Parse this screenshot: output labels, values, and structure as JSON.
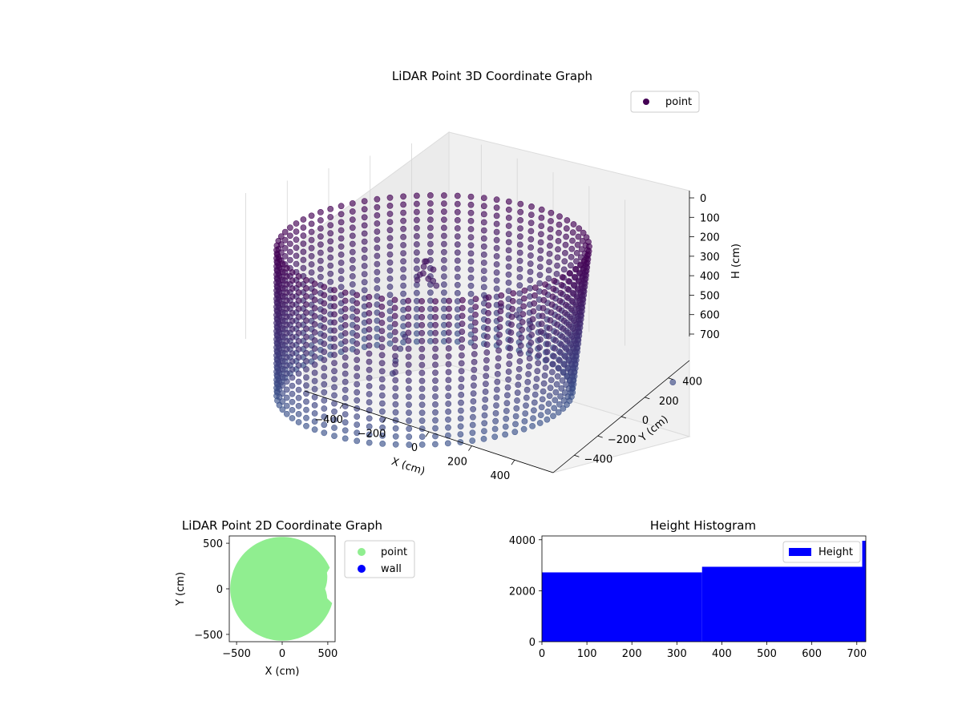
{
  "chart_data": [
    {
      "type": "scatter",
      "projection": "3d",
      "title": "LiDAR Point 3D Coordinate Graph",
      "xlabel": "X (cm)",
      "ylabel": "Y (cm)",
      "zlabel": "H (cm)",
      "xticks": [
        -400,
        -200,
        0,
        200,
        400
      ],
      "yticks": [
        -400,
        -200,
        0,
        200,
        400
      ],
      "zticks": [
        0,
        100,
        200,
        300,
        400,
        500,
        600,
        700
      ],
      "xlim": [
        -580,
        580
      ],
      "ylim": [
        -580,
        580
      ],
      "zlim": [
        0,
        720
      ],
      "z_inverted": true,
      "legend": {
        "entries": [
          "point"
        ],
        "loc": "upper right"
      },
      "series": [
        {
          "name": "point",
          "shape": "cylindrical wall of scan rings",
          "radius_cm": 570,
          "rings": 72,
          "height_levels": [
            0,
            40,
            80,
            120,
            160,
            200,
            240,
            280,
            320,
            360,
            400,
            440,
            480,
            520,
            560,
            600,
            640,
            680,
            720
          ],
          "color_start": "#440154",
          "color_end": "#3b528b",
          "extra_points": [
            [
              -120,
              60,
              150
            ],
            [
              -100,
              40,
              170
            ],
            [
              -90,
              80,
              160
            ],
            [
              -140,
              90,
              140
            ],
            [
              -60,
              30,
              180
            ],
            [
              -110,
              20,
              200
            ],
            [
              -80,
              70,
              210
            ],
            [
              -130,
              50,
              190
            ],
            [
              -160,
              100,
              150
            ],
            [
              -50,
              60,
              220
            ],
            [
              40,
              220,
              300
            ],
            [
              80,
              260,
              340
            ],
            [
              120,
              300,
              380
            ],
            [
              160,
              330,
              420
            ],
            [
              200,
              360,
              460
            ],
            [
              -40,
              -100,
              420
            ],
            [
              -20,
              -140,
              460
            ],
            [
              0,
              -180,
              500
            ],
            [
              30,
              -220,
              540
            ],
            [
              620,
              620,
              640
            ]
          ]
        }
      ],
      "grid": true
    },
    {
      "type": "scatter",
      "title": "LiDAR Point 2D Coordinate Graph",
      "xlabel": "X (cm)",
      "ylabel": "Y (cm)",
      "xticks": [
        -500,
        0,
        500
      ],
      "yticks": [
        -500,
        0,
        500
      ],
      "xlim": [
        -580,
        580
      ],
      "ylim": [
        -580,
        580
      ],
      "legend": {
        "entries": [
          "point",
          "wall"
        ],
        "loc": "outside right"
      },
      "series": [
        {
          "name": "point",
          "color": "#90ee90",
          "filled_region": "disc radius 570, notch at right side"
        },
        {
          "name": "wall",
          "color": "#0000ff",
          "values": []
        }
      ],
      "grid": false
    },
    {
      "type": "bar",
      "subtype": "histogram",
      "title": "Height Histogram",
      "xticks": [
        0,
        100,
        200,
        300,
        400,
        500,
        600,
        700
      ],
      "yticks": [
        0,
        2000,
        4000
      ],
      "xlim": [
        0,
        720
      ],
      "ylim": [
        0,
        4150
      ],
      "bins": [
        {
          "x0": 0,
          "x1": 356,
          "count": 2720
        },
        {
          "x0": 356,
          "x1": 712,
          "count": 2940
        },
        {
          "x0": 712,
          "x1": 720,
          "count": 3960
        }
      ],
      "series": [
        {
          "name": "Height",
          "color": "#0000ff"
        }
      ],
      "legend": {
        "entries": [
          "Height"
        ],
        "loc": "upper right"
      },
      "grid": false
    }
  ]
}
